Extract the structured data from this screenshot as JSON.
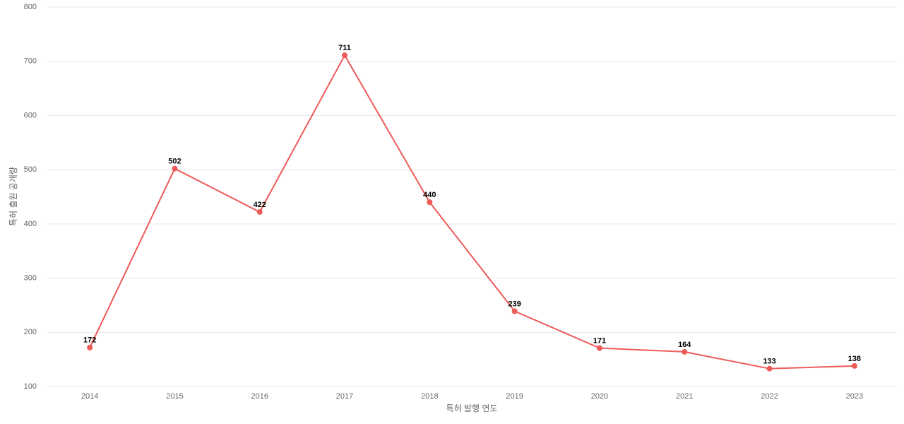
{
  "chart_data": {
    "type": "line",
    "x_label": "특허 발행 연도",
    "y_label": "특허 출원 공개량",
    "categories": [
      "2014",
      "2015",
      "2016",
      "2017",
      "2018",
      "2019",
      "2020",
      "2021",
      "2022",
      "2023"
    ],
    "values": [
      172,
      502,
      422,
      711,
      440,
      239,
      171,
      164,
      133,
      138
    ],
    "color": "#ec5b58",
    "ylim": [
      100,
      800
    ],
    "yticks": [
      100,
      200,
      300,
      400,
      500,
      600,
      700,
      800
    ],
    "grid": true
  }
}
